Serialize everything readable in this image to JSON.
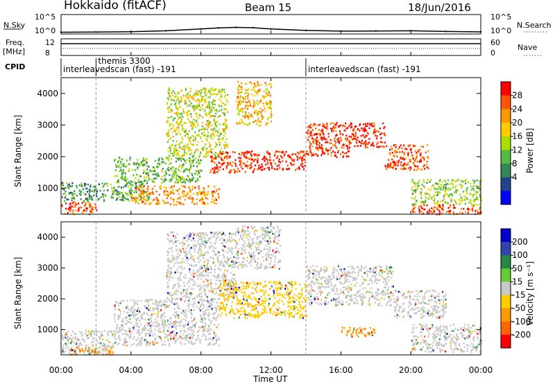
{
  "header": {
    "station": "Hokkaido (fitACF)",
    "beam": "Beam 15",
    "date": "18/Jun/2016"
  },
  "noise_panel": {
    "left_label": "N.Sky",
    "right_label": "N.Search",
    "y_ticks": [
      "10^5",
      "10^0"
    ]
  },
  "freq_panel": {
    "left_label_line1": "Freq.",
    "left_label_line2": "[MHz]",
    "left_ticks": [
      "12",
      "8"
    ],
    "right_ticks": [
      "60",
      "0"
    ],
    "right_label": "Nave"
  },
  "cpid": {
    "label": "CPID",
    "entries": [
      {
        "text": "interleavedscan (fast) -191",
        "start_hour": 0
      },
      {
        "text": "themis 3300",
        "start_hour": 2
      },
      {
        "text": "interleavedscan (fast) -191",
        "start_hour": 14
      }
    ]
  },
  "power_panel": {
    "ylabel": "Slant Range [km]",
    "cbar_label": "Power [dB]",
    "cbar_ticks": [
      "28",
      "24",
      "20",
      "16",
      "12",
      "8",
      "4"
    ],
    "cbar_colors": [
      "#ff0000",
      "#ff5500",
      "#ff9900",
      "#ffcc00",
      "#aadd00",
      "#55bb44",
      "#338855",
      "#224488",
      "#0000ff"
    ]
  },
  "velocity_panel": {
    "ylabel": "Slant Range [km]",
    "cbar_label": "Velocity [m s⁻¹]",
    "cbar_ticks": [
      "200",
      "100",
      "50",
      "15",
      "-15",
      "-50",
      "-100",
      "-200"
    ],
    "cbar_colors": [
      "#0000cc",
      "#3344aa",
      "#228844",
      "#66cc33",
      "#c8c8c8",
      "#ffcc00",
      "#ff9900",
      "#ff6600",
      "#ff0000"
    ]
  },
  "x_axis": {
    "label": "Time UT",
    "ticks": [
      "00:00",
      "04:00",
      "08:00",
      "12:00",
      "16:00",
      "20:00",
      "00:00"
    ]
  },
  "y_axis": {
    "ticks": [
      "1000",
      "2000",
      "3000",
      "4000"
    ]
  },
  "chart_data": [
    {
      "type": "line",
      "title": "N.Sky",
      "xlabel": "Time UT",
      "xlim": [
        0,
        24
      ],
      "y_scale": "log",
      "ylim_exp": [
        0,
        5
      ],
      "x": [
        0,
        2,
        4,
        6,
        8,
        9,
        10,
        11,
        12,
        14,
        16,
        18,
        20,
        22,
        24
      ],
      "values": [
        0.1,
        0.15,
        0.25,
        0.5,
        1.0,
        1.3,
        1.45,
        1.35,
        1.0,
        0.6,
        0.4,
        0.45,
        0.5,
        0.3,
        0.2
      ]
    },
    {
      "type": "line",
      "title": "Freq. [MHz]",
      "xlim": [
        0,
        24
      ],
      "ylim": [
        8,
        12
      ],
      "x": [
        0,
        24
      ],
      "values": [
        10.9,
        10.9
      ]
    },
    {
      "type": "heatmap",
      "title": "Power [dB]",
      "xlabel": "Time UT",
      "ylabel": "Slant Range [km]",
      "xlim": [
        0,
        24
      ],
      "ylim": [
        180,
        4500
      ],
      "colorbar_range": [
        0,
        30
      ],
      "regions": [
        {
          "t0": 0.0,
          "t1": 2.0,
          "r0": 200,
          "r1": 600,
          "dB": 25
        },
        {
          "t0": 0.0,
          "t1": 5.0,
          "r0": 600,
          "r1": 1200,
          "dB": 10
        },
        {
          "t0": 4.0,
          "t1": 9.0,
          "r0": 500,
          "r1": 1100,
          "dB": 22
        },
        {
          "t0": 3.0,
          "t1": 8.0,
          "r0": 1200,
          "r1": 2000,
          "dB": 12
        },
        {
          "t0": 6.0,
          "t1": 9.5,
          "r0": 2000,
          "r1": 4200,
          "dB": 16
        },
        {
          "t0": 8.5,
          "t1": 11.0,
          "r0": 1500,
          "r1": 2200,
          "dB": 26
        },
        {
          "t0": 10.0,
          "t1": 12.0,
          "r0": 3000,
          "r1": 4400,
          "dB": 20
        },
        {
          "t0": 11.0,
          "t1": 14.0,
          "r0": 1600,
          "r1": 2200,
          "dB": 28
        },
        {
          "t0": 14.0,
          "t1": 16.5,
          "r0": 2000,
          "r1": 3100,
          "dB": 27
        },
        {
          "t0": 16.5,
          "t1": 18.5,
          "r0": 2300,
          "r1": 3100,
          "dB": 28
        },
        {
          "t0": 18.5,
          "t1": 21.0,
          "r0": 1600,
          "r1": 2400,
          "dB": 25
        },
        {
          "t0": 20.0,
          "t1": 24.0,
          "r0": 500,
          "r1": 1300,
          "dB": 14
        },
        {
          "t0": 20.0,
          "t1": 24.0,
          "r0": 200,
          "r1": 500,
          "dB": 26
        }
      ]
    },
    {
      "type": "heatmap",
      "title": "Velocity [m s⁻¹]",
      "xlabel": "Time UT",
      "ylabel": "Slant Range [km]",
      "xlim": [
        0,
        24
      ],
      "ylim": [
        180,
        4500
      ],
      "colorbar_range": [
        -200,
        200
      ],
      "regions": [
        {
          "t0": 0.0,
          "t1": 3.0,
          "r0": 200,
          "r1": 1000,
          "v": 0
        },
        {
          "t0": 0.5,
          "t1": 3.0,
          "r0": 200,
          "r1": 450,
          "v": -50
        },
        {
          "t0": 3.0,
          "t1": 9.0,
          "r0": 500,
          "r1": 2000,
          "v": 0
        },
        {
          "t0": 6.0,
          "t1": 10.0,
          "r0": 2000,
          "r1": 4200,
          "v": 0
        },
        {
          "t0": 9.0,
          "t1": 14.0,
          "r0": 1400,
          "r1": 2600,
          "v": -20
        },
        {
          "t0": 10.0,
          "t1": 12.5,
          "r0": 3000,
          "r1": 4400,
          "v": 0
        },
        {
          "t0": 14.0,
          "t1": 19.0,
          "r0": 1800,
          "r1": 3100,
          "v": 0
        },
        {
          "t0": 16.0,
          "t1": 18.0,
          "r0": 800,
          "r1": 1100,
          "v": -60
        },
        {
          "t0": 19.0,
          "t1": 22.0,
          "r0": 1400,
          "r1": 2300,
          "v": 0
        },
        {
          "t0": 20.0,
          "t1": 24.0,
          "r0": 300,
          "r1": 1200,
          "v": 0
        }
      ]
    }
  ]
}
